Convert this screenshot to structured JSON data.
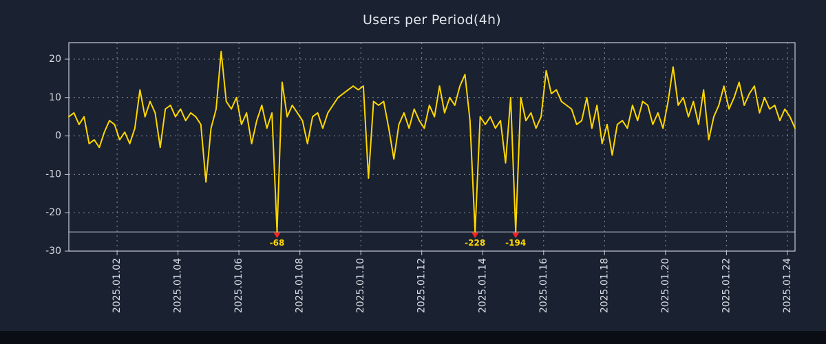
{
  "chart_data": {
    "type": "line",
    "title": "Users per Period(4h)",
    "period": "4h",
    "background": "#1a2130",
    "line_color": "#ffd700",
    "marker_color": "#ff2222",
    "grid_color": "#8b919a",
    "border_color": "#c9ced6",
    "text_color": "#d7dce3",
    "annotation_text_color": "#ffd700",
    "ylim": [
      -30,
      24.3
    ],
    "y_ticks": [
      20,
      10,
      0,
      -10,
      -20,
      -30
    ],
    "clip_line_y": -25,
    "x_tick_labels": [
      "2025.01.02",
      "2025.01.04",
      "2025.01.06",
      "2025.01.08",
      "2025.01.10",
      "2025.01.12",
      "2025.01.14",
      "2025.01.16",
      "2025.01.18",
      "2025.01.20",
      "2025.01.22",
      "2025.01.24"
    ],
    "x_tick_days": [
      2,
      4,
      6,
      8,
      10,
      12,
      14,
      16,
      18,
      20,
      22,
      24
    ],
    "x_domain_days": [
      0.4167,
      24.25
    ],
    "points_per_day": 6,
    "grid_dashed": true,
    "legend": "none",
    "series": [
      {
        "name": "users",
        "values": [
          5,
          6,
          3,
          5,
          -2,
          -1,
          -3,
          1,
          4,
          3,
          -1,
          1,
          -2,
          2,
          12,
          5,
          9,
          6,
          -3,
          7,
          8,
          5,
          7,
          4,
          6,
          5,
          3,
          -12,
          2,
          7,
          22,
          9,
          7,
          10,
          3,
          6,
          -2,
          4,
          8,
          2,
          6,
          -68,
          14,
          5,
          8,
          6,
          4,
          -2,
          5,
          6,
          2,
          6,
          8,
          10,
          11,
          12,
          13,
          12,
          13,
          -11,
          9,
          8,
          9,
          2,
          -6,
          3,
          6,
          2,
          7,
          4,
          2,
          8,
          5,
          13,
          6,
          10,
          8,
          13,
          16,
          4,
          -228,
          5,
          3,
          5,
          2,
          4,
          -7,
          10,
          -194,
          10,
          4,
          6,
          2,
          5,
          17,
          11,
          12,
          9,
          8,
          7,
          3,
          4,
          10,
          2,
          8,
          -2,
          3,
          -5,
          3,
          4,
          2,
          8,
          4,
          9,
          8,
          3,
          6,
          2,
          9,
          18,
          8,
          10,
          5,
          9,
          3,
          12,
          -1,
          5,
          8,
          13,
          7,
          10,
          14,
          8,
          11,
          13,
          6,
          10,
          7,
          8,
          4,
          7,
          5,
          2
        ]
      }
    ],
    "annotations": [
      {
        "label": "-68",
        "index": 41,
        "value": -68,
        "marker": "triangle-down"
      },
      {
        "label": "-228",
        "index": 80,
        "value": -228,
        "marker": "triangle-down"
      },
      {
        "label": "-194",
        "index": 88,
        "value": -194,
        "marker": "triangle-down"
      }
    ]
  }
}
